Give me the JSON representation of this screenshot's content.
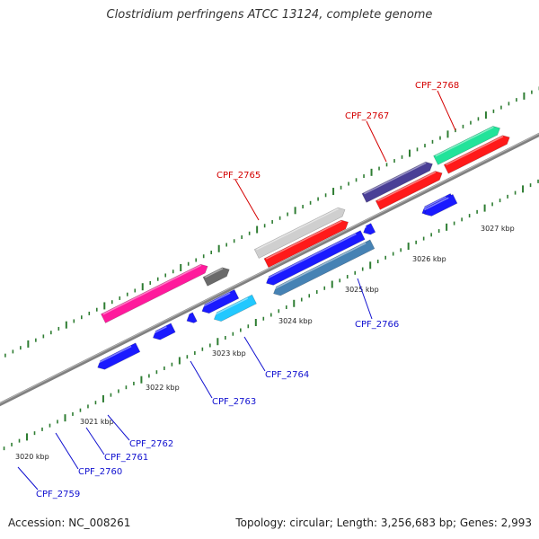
{
  "title": "Clostridium perfringens ATCC 13124, complete genome",
  "footer": {
    "accession": "Accession: NC_008261",
    "summary": "Topology: circular; Length: 3,256,683 bp; Genes: 2,993"
  },
  "colors": {
    "backbone": "#808080",
    "tick": "#2e7d32",
    "forward_label": "#d40000",
    "reverse_label": "#1010d0",
    "gene_red": "#ff1a1a",
    "gene_blue": "#1a1aff",
    "gene_gray": "#cfcfcf",
    "gene_purple": "#4a3f96",
    "gene_green": "#22e39a",
    "gene_steel": "#4682b4",
    "gene_cyan": "#22c8ff",
    "gene_magenta": "#ff1a9c",
    "gene_darkgray": "#6a6a6a"
  },
  "scale_labels": [
    "3020 kbp",
    "3021 kbp",
    "3022 kbp",
    "3023 kbp",
    "3024 kbp",
    "3025 kbp",
    "3026 kbp",
    "3027 kbp"
  ],
  "forward_genes": [
    {
      "name": "CPF_2765"
    },
    {
      "name": "CPF_2767"
    },
    {
      "name": "CPF_2768"
    }
  ],
  "reverse_genes": [
    {
      "name": "CPF_2759"
    },
    {
      "name": "CPF_2760"
    },
    {
      "name": "CPF_2761"
    },
    {
      "name": "CPF_2762"
    },
    {
      "name": "CPF_2763"
    },
    {
      "name": "CPF_2764"
    },
    {
      "name": "CPF_2766"
    }
  ]
}
